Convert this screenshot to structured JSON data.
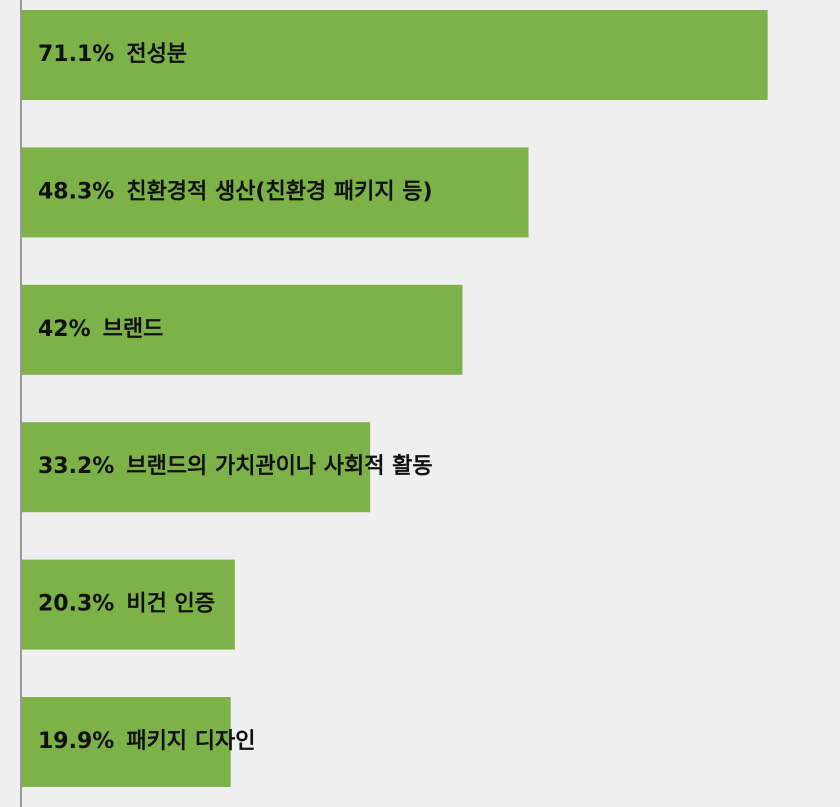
{
  "chart_data": {
    "type": "bar",
    "orientation": "horizontal",
    "categories": [
      "전성분",
      "친환경적 생산(친환경 패키지 등)",
      "브랜드",
      "브랜드의 가치관이나 사회적 활동",
      "비건 인증",
      "패키지 디자인"
    ],
    "values": [
      71.1,
      48.3,
      42,
      33.2,
      20.3,
      19.9
    ],
    "value_labels": [
      "71.1%",
      "48.3%",
      "42%",
      "33.2%",
      "20.3%",
      "19.9%"
    ],
    "color": "#7db249",
    "xlim": [
      0,
      78
    ]
  }
}
